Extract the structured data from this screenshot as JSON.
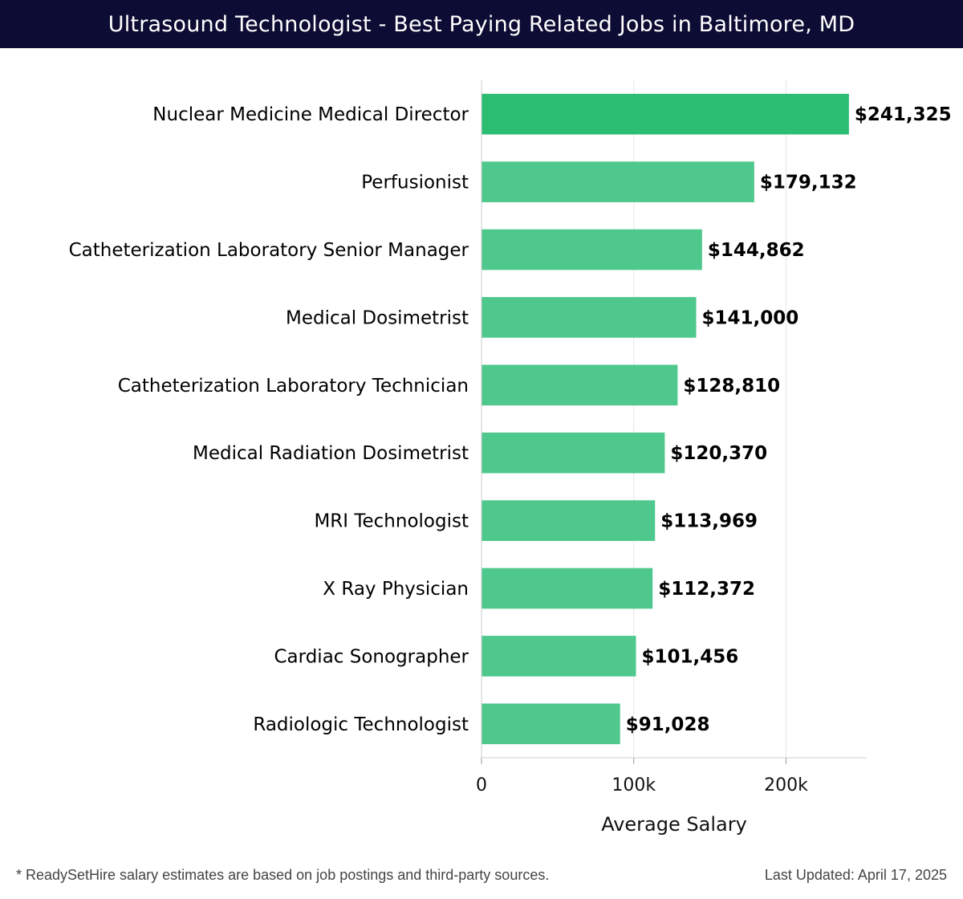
{
  "header": {
    "title": "Ultrasound Technologist - Best Paying Related Jobs in Baltimore, MD"
  },
  "chart_data": {
    "type": "bar",
    "orientation": "horizontal",
    "categories": [
      "Nuclear Medicine Medical Director",
      "Perfusionist",
      "Catheterization Laboratory Senior Manager",
      "Medical Dosimetrist",
      "Catheterization Laboratory Technician",
      "Medical Radiation Dosimetrist",
      "MRI Technologist",
      "X Ray Physician",
      "Cardiac Sonographer",
      "Radiologic Technologist"
    ],
    "values": [
      241325,
      179132,
      144862,
      141000,
      128810,
      120370,
      113969,
      112372,
      101456,
      91028
    ],
    "value_labels": [
      "$241,325",
      "$179,132",
      "$144,862",
      "$141,000",
      "$128,810",
      "$120,370",
      "$113,969",
      "$112,372",
      "$101,456",
      "$91,028"
    ],
    "xlabel": "Average Salary",
    "ylabel": "",
    "xlim": [
      0,
      253000
    ],
    "xticks": [
      0,
      100000,
      200000
    ],
    "xtick_labels": [
      "0",
      "100k",
      "200k"
    ],
    "grid": true,
    "colors": {
      "bar_top": "#2bbd72",
      "bar_rest": "#4ec88c",
      "grid": "#e6e6e6",
      "axis": "#cccccc",
      "text": "#000000"
    }
  },
  "footer": {
    "note": "* ReadySetHire salary estimates are based on job postings and third-party sources.",
    "updated": "Last Updated: April 17, 2025"
  }
}
